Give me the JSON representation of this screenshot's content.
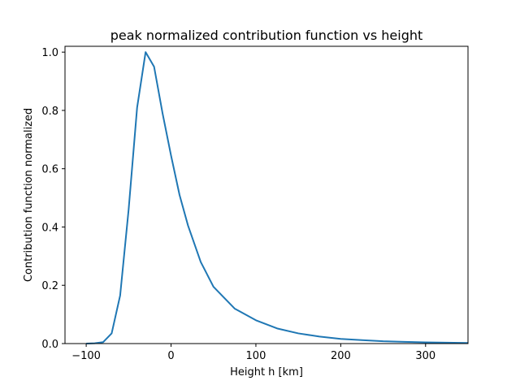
{
  "chart_data": {
    "type": "line",
    "title": "peak normalized contribution function vs height",
    "xlabel": "Height h [km]",
    "ylabel": "Contribution function normalized",
    "xlim": [
      -125,
      350
    ],
    "ylim": [
      0,
      1.02
    ],
    "x_ticks": [
      -100,
      0,
      100,
      200,
      300
    ],
    "x_tick_labels": [
      "−100",
      "0",
      "100",
      "200",
      "300"
    ],
    "y_ticks": [
      0,
      0.2,
      0.4,
      0.6,
      0.8,
      1.0
    ],
    "y_tick_labels": [
      "0.0",
      "0.2",
      "0.4",
      "0.6",
      "0.8",
      "1.0"
    ],
    "grid": false,
    "series": [
      {
        "color": "#1f77b4",
        "x": [
          -100,
          -90,
          -80,
          -70,
          -60,
          -50,
          -40,
          -30,
          -20,
          -10,
          0,
          10,
          20,
          35,
          50,
          75,
          100,
          125,
          150,
          175,
          200,
          225,
          250,
          275,
          300,
          325,
          350
        ],
        "y": [
          0.0,
          0.001,
          0.005,
          0.035,
          0.165,
          0.46,
          0.81,
          1.0,
          0.95,
          0.79,
          0.645,
          0.51,
          0.405,
          0.28,
          0.195,
          0.12,
          0.08,
          0.052,
          0.035,
          0.024,
          0.016,
          0.012,
          0.008,
          0.006,
          0.004,
          0.003,
          0.002
        ]
      }
    ]
  }
}
